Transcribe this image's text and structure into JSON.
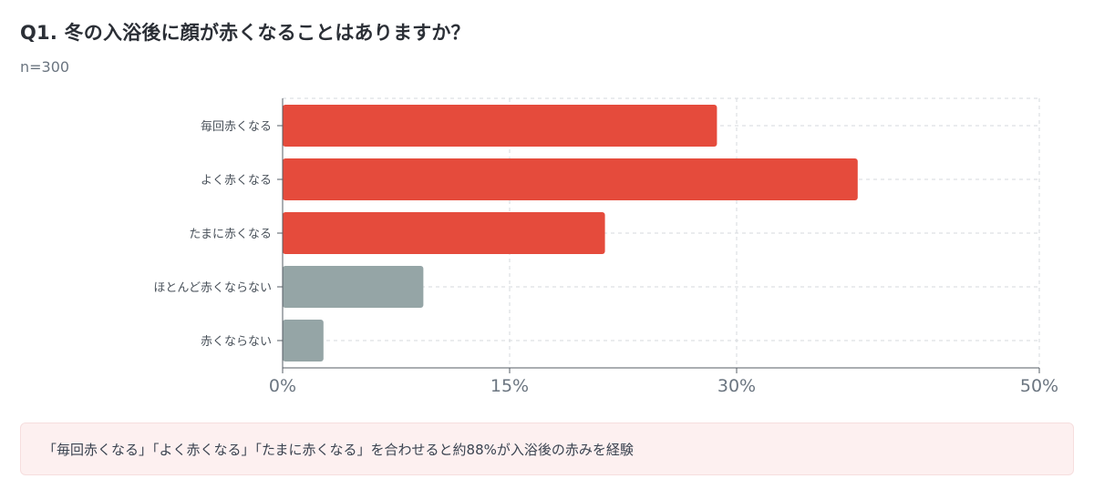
{
  "header": {
    "title": "Q1. 冬の入浴後に顔が赤くなることはありますか？",
    "sample": "n=300"
  },
  "chart_data": {
    "type": "bar",
    "orientation": "horizontal",
    "categories": [
      "毎回赤くなる",
      "よく赤くなる",
      "たまに赤くなる",
      "ほとんど赤くならない",
      "赤くならない"
    ],
    "values": [
      28.7,
      38,
      21.3,
      9.3,
      2.7
    ],
    "bar_colors": [
      "#e54b3c",
      "#e54b3c",
      "#e54b3c",
      "#95a5a6",
      "#95a5a6"
    ],
    "x_ticks": [
      "0%",
      "15%",
      "30%",
      "50%"
    ],
    "x_tick_values": [
      0,
      15,
      30,
      50
    ],
    "xlim": [
      0,
      50
    ],
    "grid": true
  },
  "note": {
    "text": "「毎回赤くなる」「よく赤くなる」「たまに赤くなる」を合わせると約88%が入浴後の赤みを経験"
  }
}
